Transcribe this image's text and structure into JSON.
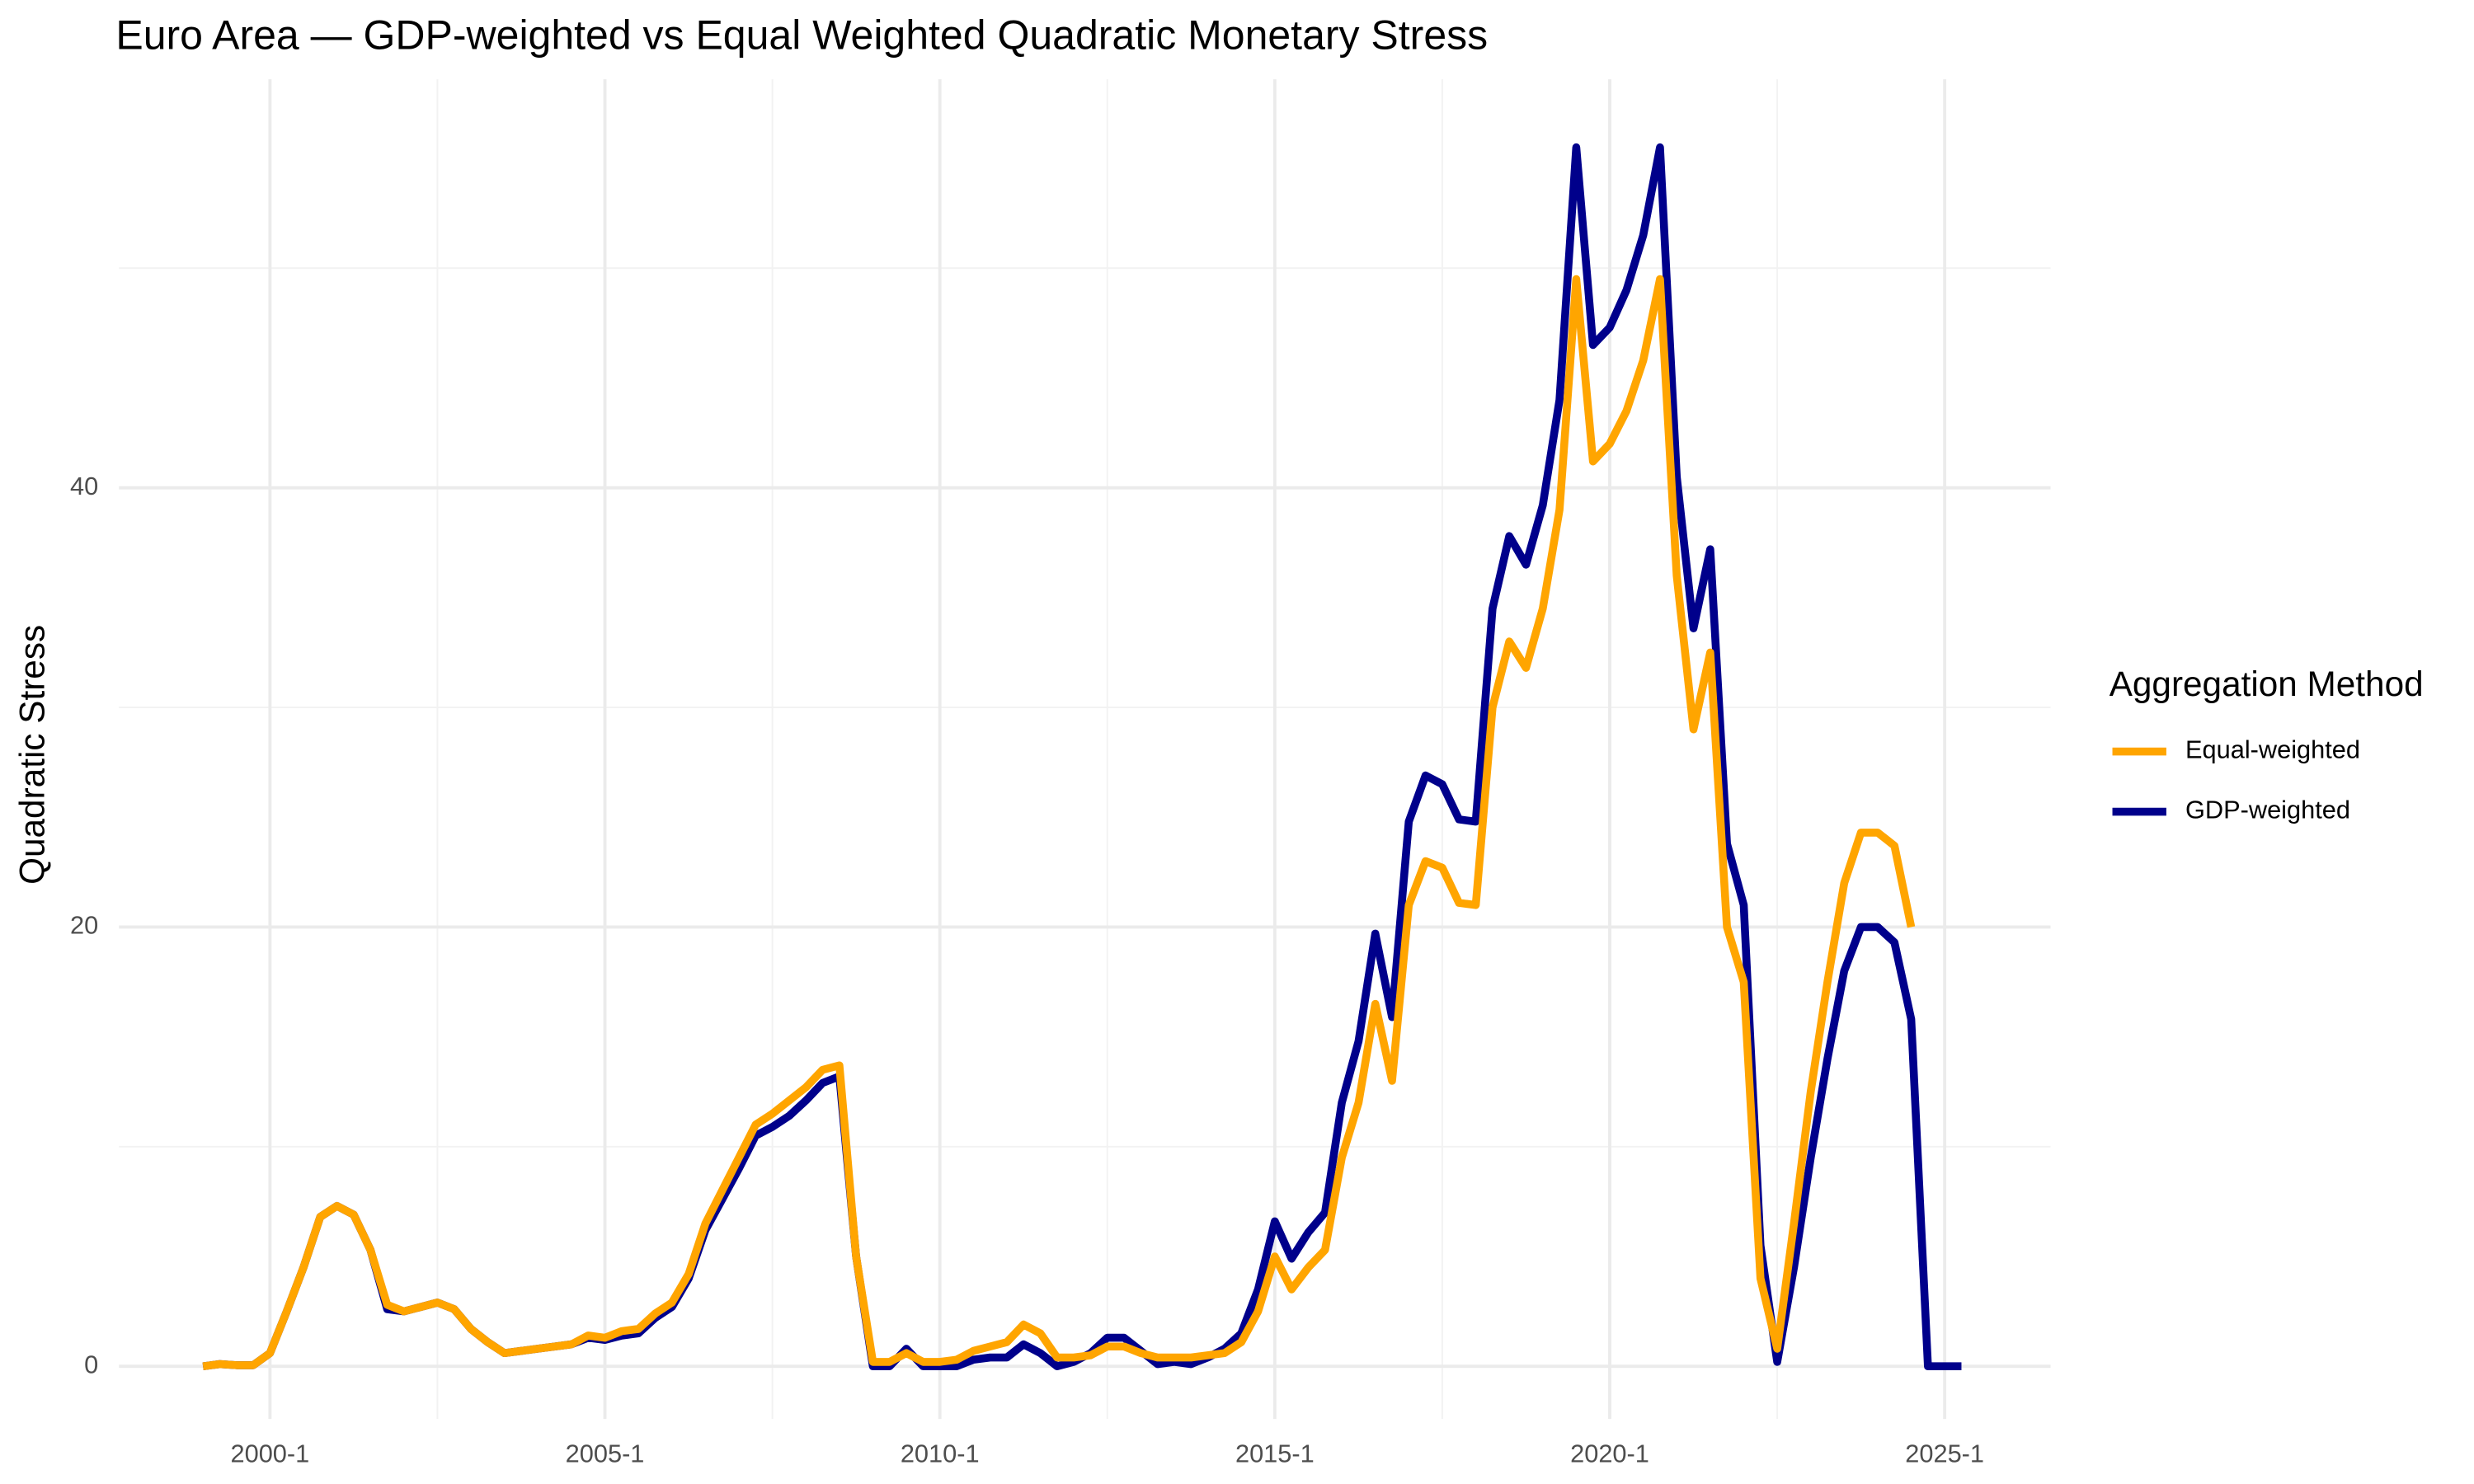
{
  "chart_data": {
    "type": "line",
    "title": "Euro Area — GDP-weighted vs Equal Weighted Quadratic Monetary Stress",
    "y_label": "Quadratic Stress",
    "legend_title": "Aggregation Method",
    "legend": "right",
    "grid": true,
    "x": [
      "1999-1",
      "1999-2",
      "1999-3",
      "1999-4",
      "2000-1",
      "2000-2",
      "2000-3",
      "2000-4",
      "2001-1",
      "2001-2",
      "2001-3",
      "2001-4",
      "2002-1",
      "2002-2",
      "2002-3",
      "2002-4",
      "2003-1",
      "2003-2",
      "2003-3",
      "2003-4",
      "2004-1",
      "2004-2",
      "2004-3",
      "2004-4",
      "2005-1",
      "2005-2",
      "2005-3",
      "2005-4",
      "2006-1",
      "2006-2",
      "2006-3",
      "2006-4",
      "2007-1",
      "2007-2",
      "2007-3",
      "2007-4",
      "2008-1",
      "2008-2",
      "2008-3",
      "2008-4",
      "2009-1",
      "2009-2",
      "2009-3",
      "2009-4",
      "2010-1",
      "2010-2",
      "2010-3",
      "2010-4",
      "2011-1",
      "2011-2",
      "2011-3",
      "2011-4",
      "2012-1",
      "2012-2",
      "2012-3",
      "2012-4",
      "2013-1",
      "2013-2",
      "2013-3",
      "2013-4",
      "2014-1",
      "2014-2",
      "2014-3",
      "2014-4",
      "2015-1",
      "2015-2",
      "2015-3",
      "2015-4",
      "2016-1",
      "2016-2",
      "2016-3",
      "2016-4",
      "2017-1",
      "2017-2",
      "2017-3",
      "2017-4",
      "2018-1",
      "2018-2",
      "2018-3",
      "2018-4",
      "2019-1",
      "2019-2",
      "2019-3",
      "2019-4",
      "2020-1",
      "2020-2",
      "2020-3",
      "2020-4",
      "2021-1",
      "2021-2",
      "2021-3",
      "2021-4",
      "2022-1",
      "2022-2",
      "2022-3",
      "2022-4",
      "2023-1",
      "2023-2",
      "2023-3",
      "2023-4",
      "2024-1",
      "2024-2",
      "2024-3",
      "2024-4",
      "2025-1",
      "2025-2"
    ],
    "xticks": [
      "2000-1",
      "2005-1",
      "2010-1",
      "2015-1",
      "2020-1",
      "2025-1"
    ],
    "x_minor_grid": [
      "2002-3",
      "2007-3",
      "2012-3",
      "2017-3",
      "2022-3"
    ],
    "ylim": [
      -2.4,
      58.6
    ],
    "yticks": [
      0,
      20,
      40
    ],
    "y_minor_grid": [
      10,
      30,
      50
    ],
    "series": [
      {
        "name": "GDP-weighted",
        "color": "#00008B",
        "values": [
          0,
          0.1,
          0.05,
          0.05,
          0.6,
          2.5,
          4.5,
          6.8,
          7.3,
          6.9,
          5.3,
          2.6,
          2.5,
          2.7,
          2.9,
          2.6,
          1.7,
          1.1,
          0.6,
          0.7,
          0.8,
          0.9,
          1.0,
          1.3,
          1.2,
          1.4,
          1.5,
          2.2,
          2.7,
          4.0,
          6.2,
          7.6,
          9.0,
          10.5,
          10.9,
          11.4,
          12.1,
          12.9,
          13.2,
          5.0,
          0.0,
          0.0,
          0.8,
          0.0,
          0.0,
          0.0,
          0.3,
          0.4,
          0.4,
          1.0,
          0.6,
          0.0,
          0.2,
          0.6,
          1.3,
          1.3,
          0.7,
          0.1,
          0.2,
          0.1,
          0.4,
          0.8,
          1.5,
          3.5,
          6.6,
          4.9,
          6.1,
          7.0,
          12.0,
          14.8,
          19.7,
          15.9,
          24.8,
          26.9,
          26.5,
          24.9,
          24.8,
          34.5,
          37.8,
          36.5,
          39.2,
          44.0,
          55.5,
          46.5,
          47.3,
          49.0,
          51.5,
          55.5,
          40.5,
          33.6,
          37.2,
          23.8,
          21.0,
          5.5,
          0.2,
          4.5,
          9.5,
          14.0,
          18.0,
          20.0,
          20.0,
          19.3,
          15.8,
          0.0,
          0.0,
          0.0
        ]
      },
      {
        "name": "Equal-weighted",
        "color": "#FFA500",
        "values": [
          0,
          0.1,
          0.05,
          0.05,
          0.6,
          2.5,
          4.5,
          6.8,
          7.3,
          6.9,
          5.3,
          2.8,
          2.5,
          2.7,
          2.9,
          2.6,
          1.7,
          1.1,
          0.6,
          0.7,
          0.8,
          0.9,
          1.0,
          1.4,
          1.3,
          1.6,
          1.7,
          2.4,
          2.9,
          4.2,
          6.5,
          8.0,
          9.5,
          11.0,
          11.5,
          12.1,
          12.7,
          13.5,
          13.7,
          5.0,
          0.2,
          0.2,
          0.6,
          0.2,
          0.2,
          0.3,
          0.7,
          0.9,
          1.1,
          1.9,
          1.5,
          0.4,
          0.4,
          0.5,
          0.9,
          0.9,
          0.6,
          0.4,
          0.4,
          0.4,
          0.5,
          0.6,
          1.1,
          2.5,
          5.0,
          3.5,
          4.5,
          5.3,
          9.5,
          12.0,
          16.5,
          13.0,
          21.0,
          23.0,
          22.7,
          21.1,
          21.0,
          30.0,
          33.0,
          31.8,
          34.5,
          39.0,
          49.5,
          41.2,
          42.0,
          43.5,
          45.8,
          49.5,
          36.0,
          29.0,
          32.5,
          20.0,
          17.5,
          4.0,
          0.8,
          6.5,
          12.5,
          17.5,
          22.0,
          24.3,
          24.3,
          23.7,
          20.0,
          null,
          null,
          null
        ]
      }
    ],
    "legend_order": [
      1,
      0
    ]
  }
}
